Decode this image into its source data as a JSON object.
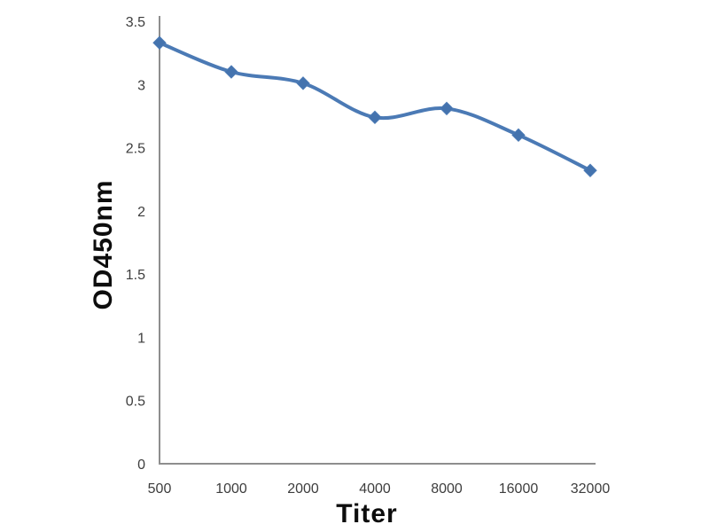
{
  "chart_data": {
    "type": "line",
    "title": "",
    "xlabel": "Titer",
    "ylabel": "OD450nm",
    "categories": [
      "500",
      "1000",
      "2000",
      "4000",
      "8000",
      "16000",
      "32000"
    ],
    "series": [
      {
        "name": "OD450nm",
        "values": [
          3.33,
          3.1,
          3.01,
          2.74,
          2.81,
          2.6,
          2.32
        ]
      }
    ],
    "ylim": [
      0,
      3.5
    ],
    "yticks": [
      "0",
      "0.5",
      "1",
      "1.5",
      "2",
      "2.5",
      "3",
      "3.5"
    ],
    "grid": false,
    "legend": "none",
    "smooth": true,
    "marker": "diamond",
    "colors": {
      "line": "#4b7ab5",
      "marker": "#4473ae",
      "axis": "#8e8e8e",
      "tick_text": "#3d3d3d",
      "axis_title_text": "#0d0d0d",
      "background": "#ffffff"
    }
  }
}
